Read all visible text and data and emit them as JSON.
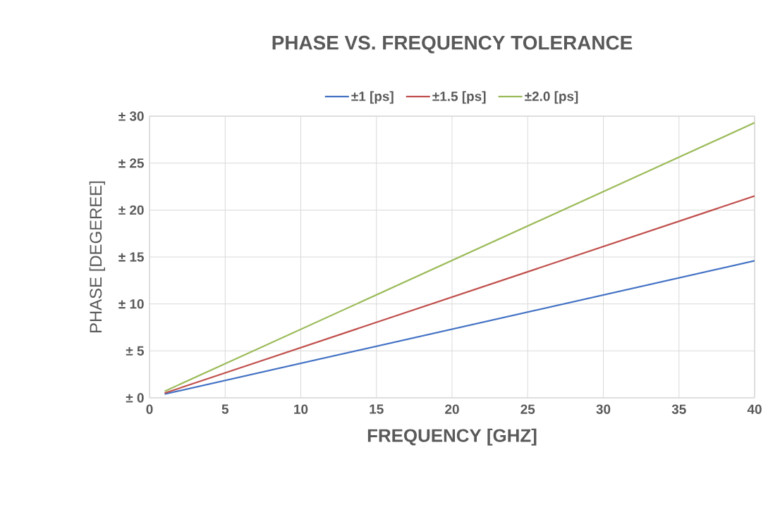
{
  "chart_data": {
    "type": "line",
    "title": "PHASE VS. FREQUENCY TOLERANCE",
    "xlabel": "FREQUENCY [GHZ]",
    "ylabel": "PHASE [DEGEREE]",
    "x": [
      1,
      40
    ],
    "series": [
      {
        "name": "±1 [ps]",
        "color": "#4472c4",
        "values": [
          0.4,
          14.6
        ]
      },
      {
        "name": "±1.5 [ps]",
        "color": "#c0504d",
        "values": [
          0.5,
          21.5
        ]
      },
      {
        "name": "±2.0 [ps]",
        "color": "#9bbb59",
        "values": [
          0.7,
          29.3
        ]
      }
    ],
    "xlim": [
      0,
      40
    ],
    "xticks": [
      0,
      5,
      10,
      15,
      20,
      25,
      30,
      35,
      40
    ],
    "ylim": [
      0,
      30
    ],
    "yticks": [
      {
        "value": 0,
        "label": "± 0"
      },
      {
        "value": 5,
        "label": "± 5"
      },
      {
        "value": 10,
        "label": "± 10"
      },
      {
        "value": 15,
        "label": "± 15"
      },
      {
        "value": 20,
        "label": "± 20"
      },
      {
        "value": 25,
        "label": "± 25"
      },
      {
        "value": 30,
        "label": "± 30"
      }
    ],
    "grid": true,
    "legend": "top",
    "marker": "none",
    "line_style": "solid"
  }
}
